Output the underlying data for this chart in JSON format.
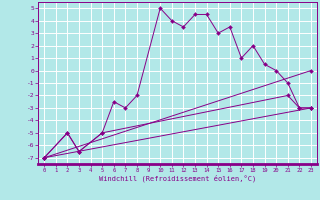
{
  "background_color": "#b2e8e8",
  "grid_color": "#ffffff",
  "line_color": "#880088",
  "spine_color": "#880088",
  "xlim": [
    -0.5,
    23.5
  ],
  "ylim": [
    -7.5,
    5.5
  ],
  "xlabel": "Windchill (Refroidissement éolien,°C)",
  "xticks": [
    0,
    1,
    2,
    3,
    4,
    5,
    6,
    7,
    8,
    9,
    10,
    11,
    12,
    13,
    14,
    15,
    16,
    17,
    18,
    19,
    20,
    21,
    22,
    23
  ],
  "yticks": [
    5,
    4,
    3,
    2,
    1,
    0,
    -1,
    -2,
    -3,
    -4,
    -5,
    -6,
    -7
  ],
  "series": [
    {
      "x": [
        0,
        2,
        3,
        5,
        6,
        7,
        8,
        10,
        11,
        12,
        13,
        14,
        15,
        16,
        17,
        18,
        19,
        20,
        21,
        22,
        23
      ],
      "y": [
        -7,
        -5,
        -6.5,
        -5,
        -2.5,
        -3,
        -2,
        5,
        4,
        3.5,
        4.5,
        4.5,
        3,
        3.5,
        1,
        2,
        0.5,
        0,
        -1,
        -3,
        -3
      ]
    },
    {
      "x": [
        0,
        2,
        3,
        5,
        21,
        22,
        23
      ],
      "y": [
        -7,
        -5,
        -6.5,
        -5,
        -2,
        -3,
        -3
      ]
    },
    {
      "x": [
        0,
        23
      ],
      "y": [
        -7,
        -3
      ]
    },
    {
      "x": [
        0,
        23
      ],
      "y": [
        -7,
        0
      ]
    }
  ]
}
